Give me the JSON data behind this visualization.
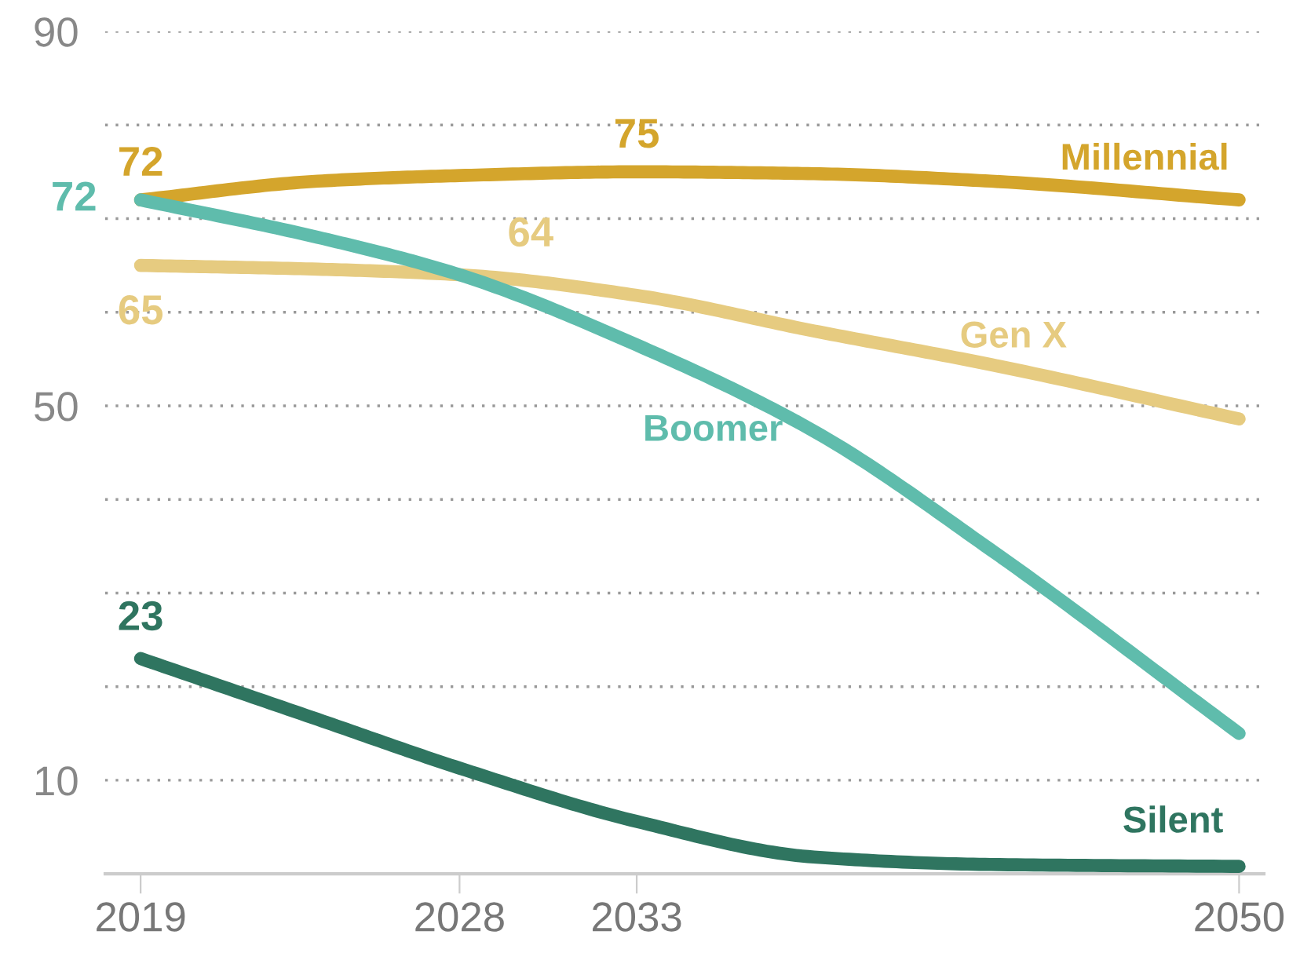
{
  "chart_data": {
    "type": "line",
    "x": [
      2019,
      2024,
      2028,
      2033,
      2038,
      2043,
      2050
    ],
    "series": [
      {
        "name": "Millennial",
        "color": "#d4a52c",
        "values": [
          72,
          74,
          74.6,
          75,
          74.8,
          74,
          72
        ],
        "value_labels": [
          "72",
          null,
          null,
          "75",
          null,
          null,
          null
        ]
      },
      {
        "name": "Gen X",
        "color": "#e6cb80",
        "values": [
          65,
          64.6,
          64,
          61.8,
          58,
          54.4,
          48.6
        ],
        "value_labels": [
          "65",
          null,
          "64",
          null,
          null,
          null,
          null
        ]
      },
      {
        "name": "Boomer",
        "color": "#5fbcac",
        "values": [
          72,
          68,
          64,
          56.5,
          47.3,
          34.6,
          15
        ],
        "value_labels": [
          "72",
          null,
          null,
          null,
          null,
          null,
          null
        ]
      },
      {
        "name": "Silent",
        "color": "#2f7560",
        "values": [
          23,
          16.5,
          11.3,
          5.6,
          1.8,
          1,
          0.8
        ],
        "value_labels": [
          "23",
          null,
          null,
          null,
          null,
          null,
          null
        ]
      }
    ],
    "xlim": [
      2018,
      2050.7
    ],
    "xticks": [
      2019,
      2028,
      2033,
      2050
    ],
    "ylim": [
      0,
      90
    ],
    "yticks": [
      {
        "value": 10,
        "label": "10"
      },
      {
        "value": 20,
        "label": null
      },
      {
        "value": 30,
        "label": null
      },
      {
        "value": 40,
        "label": null
      },
      {
        "value": 50,
        "label": "50"
      },
      {
        "value": 60,
        "label": null
      },
      {
        "value": 70,
        "label": null
      },
      {
        "value": 80,
        "label": null
      },
      {
        "value": 90,
        "label": "90"
      }
    ],
    "grid": "y",
    "line_style": "solid",
    "legend": false
  }
}
